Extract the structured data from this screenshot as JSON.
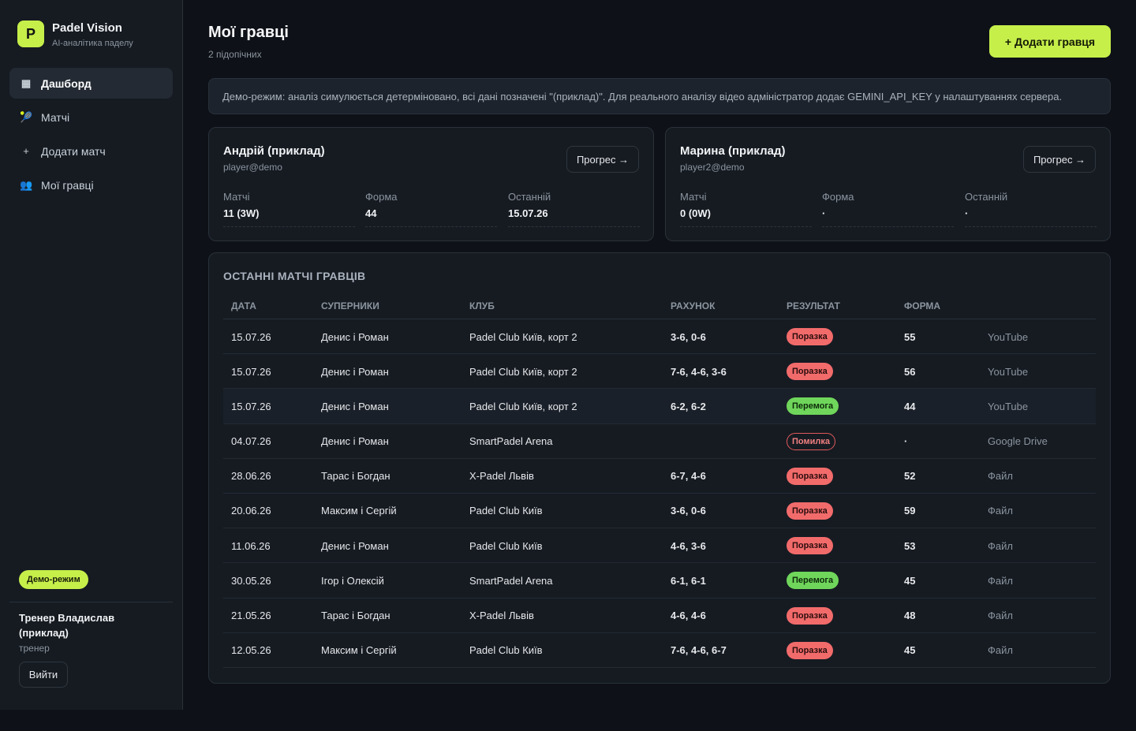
{
  "brand": {
    "logo_letter": "P",
    "name": "Padel Vision",
    "subtitle": "AI-аналітика паделу"
  },
  "nav": [
    {
      "icon": "▦",
      "label": "Дашборд",
      "active": true
    },
    {
      "icon": "🎾",
      "label": "Матчі"
    },
    {
      "icon": "+",
      "label": "Додати матч"
    },
    {
      "icon": "👥",
      "label": "Мої гравці"
    }
  ],
  "sidebar_footer": {
    "demo_badge": "Демо-режим",
    "user_name": "Тренер Владислав (приклад)",
    "user_role": "тренер",
    "logout": "Вийти"
  },
  "header": {
    "title": "Мої гравці",
    "subtitle": "2 підопічних",
    "add_button": "+ Додати гравця"
  },
  "banner": "Демо-режим: аналіз симулюється детерміновано, всі дані позначені \"(приклад)\". Для реального аналізу відео адміністратор додає GEMINI_API_KEY у налаштуваннях сервера.",
  "players": [
    {
      "name": "Андрій (приклад)",
      "email": "player@demo",
      "progress_button": "Прогрес →",
      "stats": [
        {
          "label": "Матчі",
          "value": "11 (3W)"
        },
        {
          "label": "Форма",
          "value": "44"
        },
        {
          "label": "Останній",
          "value": "15.07.26"
        }
      ]
    },
    {
      "name": "Марина (приклад)",
      "email": "player2@demo",
      "progress_button": "Прогрес →",
      "stats": [
        {
          "label": "Матчі",
          "value": "0 (0W)"
        },
        {
          "label": "Форма",
          "value": "·"
        },
        {
          "label": "Останній",
          "value": "·"
        }
      ]
    }
  ],
  "matches": {
    "title": "ОСТАННІ МАТЧІ ГРАВЦІВ",
    "columns": [
      "ДАТА",
      "СУПЕРНИКИ",
      "КЛУБ",
      "РАХУНОК",
      "РЕЗУЛЬТАТ",
      "ФОРМА"
    ],
    "rows": [
      {
        "date": "15.07.26",
        "opponents": "Денис і Роман",
        "club": "Padel Club Київ, корт 2",
        "score": "3-6, 0-6",
        "result": "Поразка",
        "result_type": "loss",
        "form": "55",
        "source": "YouTube"
      },
      {
        "date": "15.07.26",
        "opponents": "Денис і Роман",
        "club": "Padel Club Київ, корт 2",
        "score": "7-6, 4-6, 3-6",
        "result": "Поразка",
        "result_type": "loss",
        "form": "56",
        "source": "YouTube"
      },
      {
        "date": "15.07.26",
        "opponents": "Денис і Роман",
        "club": "Padel Club Київ, корт 2",
        "score": "6-2, 6-2",
        "result": "Перемога",
        "result_type": "win",
        "form": "44",
        "source": "YouTube"
      },
      {
        "date": "04.07.26",
        "opponents": "Денис і Роман",
        "club": "SmartPadel Arena",
        "score": "",
        "result": "Помилка",
        "result_type": "err",
        "form": "·",
        "source": "Google Drive"
      },
      {
        "date": "28.06.26",
        "opponents": "Тарас і Богдан",
        "club": "X-Padel Львів",
        "score": "6-7, 4-6",
        "result": "Поразка",
        "result_type": "loss",
        "form": "52",
        "source": "Файл"
      },
      {
        "date": "20.06.26",
        "opponents": "Максим і Сергій",
        "club": "Padel Club Київ",
        "score": "3-6, 0-6",
        "result": "Поразка",
        "result_type": "loss",
        "form": "59",
        "source": "Файл"
      },
      {
        "date": "11.06.26",
        "opponents": "Денис і Роман",
        "club": "Padel Club Київ",
        "score": "4-6, 3-6",
        "result": "Поразка",
        "result_type": "loss",
        "form": "53",
        "source": "Файл"
      },
      {
        "date": "30.05.26",
        "opponents": "Ігор і Олексій",
        "club": "SmartPadel Arena",
        "score": "6-1, 6-1",
        "result": "Перемога",
        "result_type": "win",
        "form": "45",
        "source": "Файл"
      },
      {
        "date": "21.05.26",
        "opponents": "Тарас і Богдан",
        "club": "X-Padel Львів",
        "score": "4-6, 4-6",
        "result": "Поразка",
        "result_type": "loss",
        "form": "48",
        "source": "Файл"
      },
      {
        "date": "12.05.26",
        "opponents": "Максим і Сергій",
        "club": "Padel Club Київ",
        "score": "7-6, 4-6, 6-7",
        "result": "Поразка",
        "result_type": "loss",
        "form": "45",
        "source": "Файл"
      }
    ]
  },
  "colors": {
    "accent": "#c6ef4a",
    "background": "#0e1117",
    "panel": "#161b22",
    "loss": "#f26b6b",
    "win": "#6fd65b",
    "error": "#e05a5a"
  }
}
